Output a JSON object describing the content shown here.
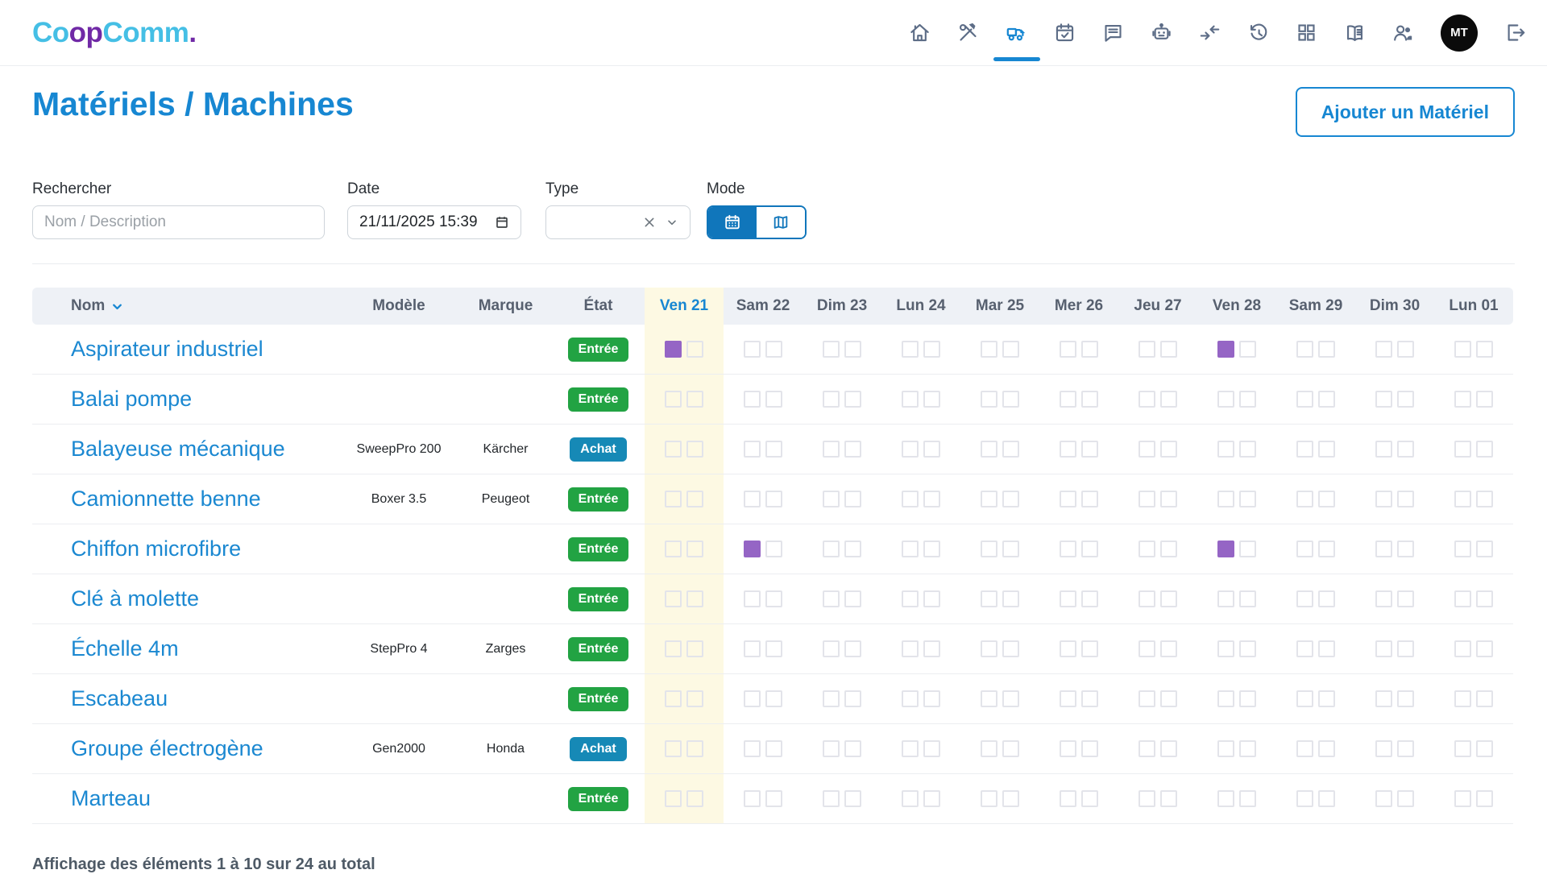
{
  "brand": {
    "segments": [
      {
        "text": "Co",
        "color": "#45bfe5"
      },
      {
        "text": "op",
        "color": "#7029a6"
      },
      {
        "text": "Comm",
        "color": "#45bfe5"
      },
      {
        "text": ".",
        "color": "#7029a6"
      }
    ]
  },
  "navbar": {
    "icons": [
      "home",
      "tools",
      "equipment-truck",
      "calendar-check",
      "chat",
      "robot",
      "merge-arrows",
      "history",
      "grid",
      "book",
      "users",
      "logout"
    ],
    "active_icon": "equipment-truck",
    "avatar_initials": "MT"
  },
  "page": {
    "title": "Matériels / Machines",
    "add_button_label": "Ajouter un Matériel"
  },
  "filters": {
    "search": {
      "label": "Rechercher",
      "placeholder": "Nom / Description",
      "value": ""
    },
    "date": {
      "label": "Date",
      "value": "21/11/2025 15:39"
    },
    "type": {
      "label": "Type",
      "value": ""
    },
    "mode": {
      "label": "Mode",
      "options": [
        "calendar",
        "map"
      ],
      "selected": "calendar"
    }
  },
  "table": {
    "columns": {
      "nom": "Nom",
      "modele": "Modèle",
      "marque": "Marque",
      "etat": "État"
    },
    "days": [
      "Ven 21",
      "Sam 22",
      "Dim 23",
      "Lun 24",
      "Mar 25",
      "Mer 26",
      "Jeu 27",
      "Ven 28",
      "Sam 29",
      "Dim 30",
      "Lun 01"
    ],
    "highlighted_day": "Ven 21",
    "rows": [
      {
        "nom": "Aspirateur industriel",
        "modele": "",
        "marque": "",
        "etat": "Entrée",
        "etat_type": "entree",
        "marks": [
          [
            1,
            0
          ],
          [
            0,
            0
          ],
          [
            0,
            0
          ],
          [
            0,
            0
          ],
          [
            0,
            0
          ],
          [
            0,
            0
          ],
          [
            0,
            0
          ],
          [
            1,
            0
          ],
          [
            0,
            0
          ],
          [
            0,
            0
          ],
          [
            0,
            0
          ]
        ]
      },
      {
        "nom": "Balai pompe",
        "modele": "",
        "marque": "",
        "etat": "Entrée",
        "etat_type": "entree",
        "marks": [
          [
            0,
            0
          ],
          [
            0,
            0
          ],
          [
            0,
            0
          ],
          [
            0,
            0
          ],
          [
            0,
            0
          ],
          [
            0,
            0
          ],
          [
            0,
            0
          ],
          [
            0,
            0
          ],
          [
            0,
            0
          ],
          [
            0,
            0
          ],
          [
            0,
            0
          ]
        ]
      },
      {
        "nom": "Balayeuse mécanique",
        "modele": "SweepPro 200",
        "marque": "Kärcher",
        "etat": "Achat",
        "etat_type": "achat",
        "marks": [
          [
            0,
            0
          ],
          [
            0,
            0
          ],
          [
            0,
            0
          ],
          [
            0,
            0
          ],
          [
            0,
            0
          ],
          [
            0,
            0
          ],
          [
            0,
            0
          ],
          [
            0,
            0
          ],
          [
            0,
            0
          ],
          [
            0,
            0
          ],
          [
            0,
            0
          ]
        ]
      },
      {
        "nom": "Camionnette benne",
        "modele": "Boxer 3.5",
        "marque": "Peugeot",
        "etat": "Entrée",
        "etat_type": "entree",
        "marks": [
          [
            0,
            0
          ],
          [
            0,
            0
          ],
          [
            0,
            0
          ],
          [
            0,
            0
          ],
          [
            0,
            0
          ],
          [
            0,
            0
          ],
          [
            0,
            0
          ],
          [
            0,
            0
          ],
          [
            0,
            0
          ],
          [
            0,
            0
          ],
          [
            0,
            0
          ]
        ]
      },
      {
        "nom": "Chiffon microfibre",
        "modele": "",
        "marque": "",
        "etat": "Entrée",
        "etat_type": "entree",
        "marks": [
          [
            0,
            0
          ],
          [
            1,
            0
          ],
          [
            0,
            0
          ],
          [
            0,
            0
          ],
          [
            0,
            0
          ],
          [
            0,
            0
          ],
          [
            0,
            0
          ],
          [
            1,
            0
          ],
          [
            0,
            0
          ],
          [
            0,
            0
          ],
          [
            0,
            0
          ]
        ]
      },
      {
        "nom": "Clé à molette",
        "modele": "",
        "marque": "",
        "etat": "Entrée",
        "etat_type": "entree",
        "marks": [
          [
            0,
            0
          ],
          [
            0,
            0
          ],
          [
            0,
            0
          ],
          [
            0,
            0
          ],
          [
            0,
            0
          ],
          [
            0,
            0
          ],
          [
            0,
            0
          ],
          [
            0,
            0
          ],
          [
            0,
            0
          ],
          [
            0,
            0
          ],
          [
            0,
            0
          ]
        ]
      },
      {
        "nom": "Échelle 4m",
        "modele": "StepPro 4",
        "marque": "Zarges",
        "etat": "Entrée",
        "etat_type": "entree",
        "marks": [
          [
            0,
            0
          ],
          [
            0,
            0
          ],
          [
            0,
            0
          ],
          [
            0,
            0
          ],
          [
            0,
            0
          ],
          [
            0,
            0
          ],
          [
            0,
            0
          ],
          [
            0,
            0
          ],
          [
            0,
            0
          ],
          [
            0,
            0
          ],
          [
            0,
            0
          ]
        ]
      },
      {
        "nom": "Escabeau",
        "modele": "",
        "marque": "",
        "etat": "Entrée",
        "etat_type": "entree",
        "marks": [
          [
            0,
            0
          ],
          [
            0,
            0
          ],
          [
            0,
            0
          ],
          [
            0,
            0
          ],
          [
            0,
            0
          ],
          [
            0,
            0
          ],
          [
            0,
            0
          ],
          [
            0,
            0
          ],
          [
            0,
            0
          ],
          [
            0,
            0
          ],
          [
            0,
            0
          ]
        ]
      },
      {
        "nom": "Groupe électrogène",
        "modele": "Gen2000",
        "marque": "Honda",
        "etat": "Achat",
        "etat_type": "achat",
        "marks": [
          [
            0,
            0
          ],
          [
            0,
            0
          ],
          [
            0,
            0
          ],
          [
            0,
            0
          ],
          [
            0,
            0
          ],
          [
            0,
            0
          ],
          [
            0,
            0
          ],
          [
            0,
            0
          ],
          [
            0,
            0
          ],
          [
            0,
            0
          ],
          [
            0,
            0
          ]
        ]
      },
      {
        "nom": "Marteau",
        "modele": "",
        "marque": "",
        "etat": "Entrée",
        "etat_type": "entree",
        "marks": [
          [
            0,
            0
          ],
          [
            0,
            0
          ],
          [
            0,
            0
          ],
          [
            0,
            0
          ],
          [
            0,
            0
          ],
          [
            0,
            0
          ],
          [
            0,
            0
          ],
          [
            0,
            0
          ],
          [
            0,
            0
          ],
          [
            0,
            0
          ],
          [
            0,
            0
          ]
        ]
      }
    ]
  },
  "footer": {
    "summary": "Affichage des éléments 1 à 10 sur 24 au total"
  },
  "colors": {
    "accent": "#1787d2",
    "badge_entree": "#22a343",
    "badge_achat": "#1689b6",
    "mark_purple": "#9565c5",
    "day_highlight": "#fdf9e3",
    "logo_blue": "#45bfe5",
    "logo_purple": "#7029a6"
  }
}
